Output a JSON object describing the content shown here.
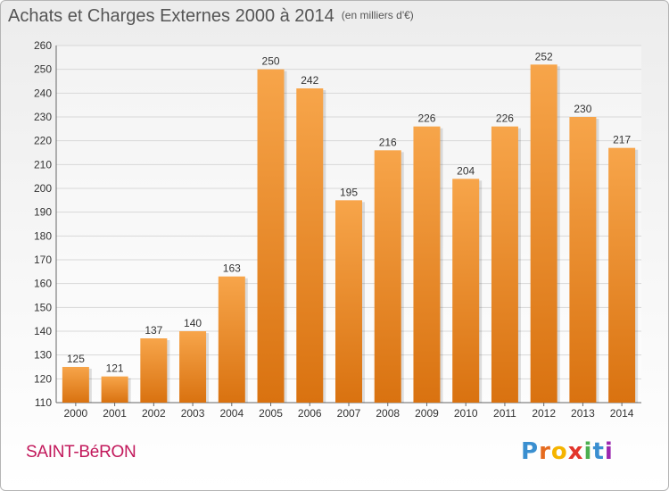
{
  "header": {
    "title": "Achats et Charges Externes 2000 à 2014",
    "subtitle": "(en milliers d'€)"
  },
  "footer": {
    "commune": "SAINT-BéRON",
    "logo": "Proxiti"
  },
  "colors": {
    "bar_top": "#f7a54a",
    "bar_bottom": "#d97210",
    "grid": "#d8d8d8",
    "commune": "#c2185b"
  },
  "chart_data": {
    "type": "bar",
    "categories": [
      "2000",
      "2001",
      "2002",
      "2003",
      "2004",
      "2005",
      "2006",
      "2007",
      "2008",
      "2009",
      "2010",
      "2011",
      "2012",
      "2013",
      "2014"
    ],
    "values": [
      125,
      121,
      137,
      140,
      163,
      250,
      242,
      195,
      216,
      226,
      204,
      226,
      252,
      230,
      217
    ],
    "title": "Achats et Charges Externes 2000 à 2014",
    "subtitle": "(en milliers d'€)",
    "xlabel": "",
    "ylabel": "",
    "ylim": [
      110,
      260
    ],
    "yticks": [
      110,
      120,
      130,
      140,
      150,
      160,
      170,
      180,
      190,
      200,
      210,
      220,
      230,
      240,
      250,
      260
    ],
    "grid": true,
    "data_labels": true
  }
}
